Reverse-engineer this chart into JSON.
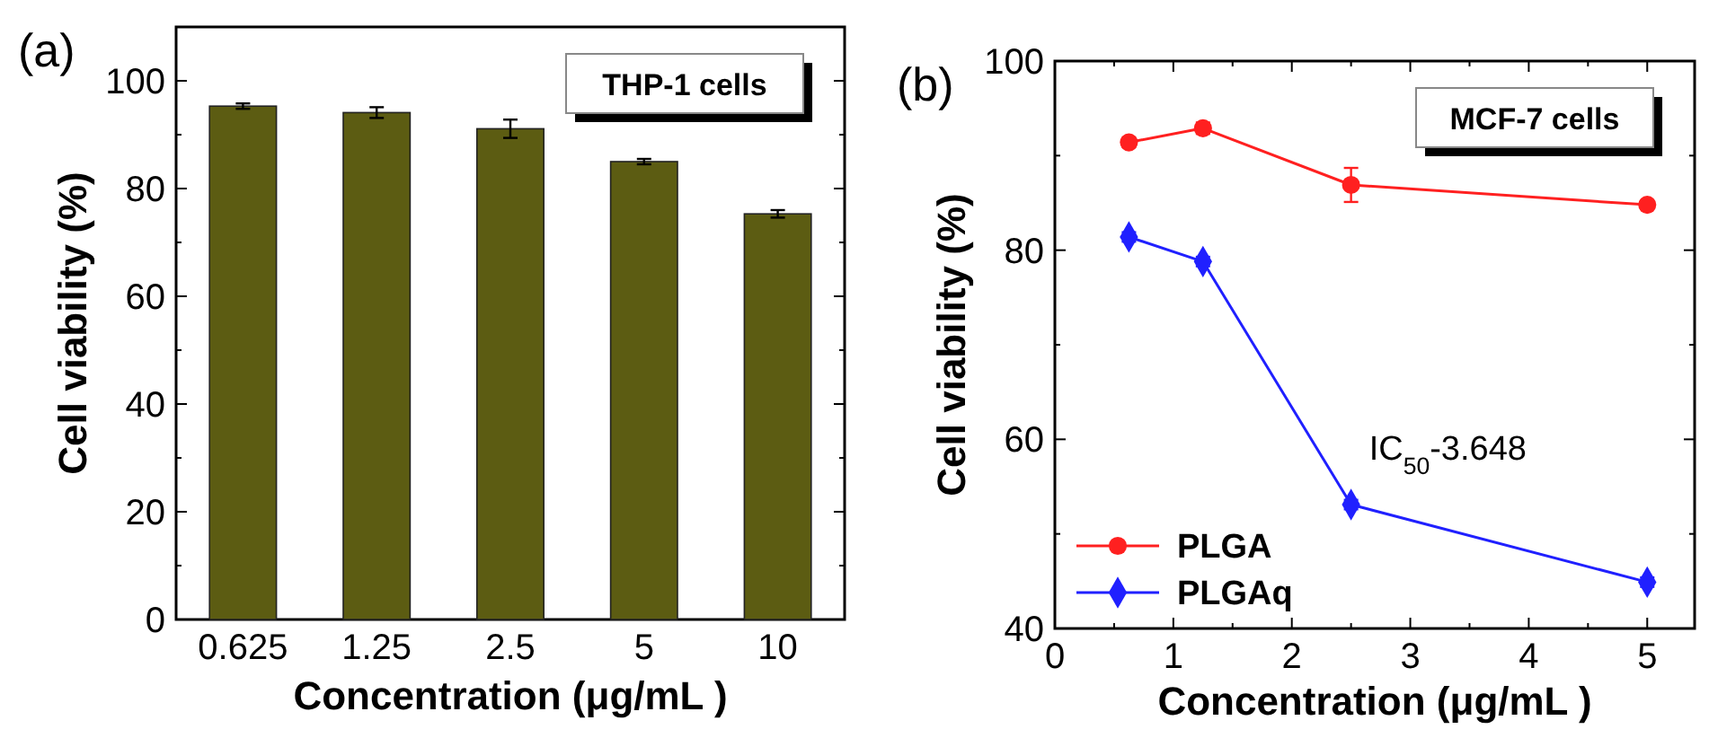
{
  "chart_data": [
    {
      "type": "bar",
      "categories": [
        "0.625",
        "1.25",
        "2.5",
        "5",
        "10"
      ],
      "values": [
        95.3,
        94.1,
        91.1,
        85,
        75.3
      ],
      "errors": [
        0.5,
        1,
        1.7,
        0.5,
        0.7
      ],
      "color": "#5c5c12",
      "xlabel": "Concentration (μg/mL )",
      "ylabel": "Cell viability (%)",
      "ylim": [
        0,
        110
      ],
      "yticks": [
        0,
        20,
        40,
        60,
        80,
        100,
        {
          "value": 10,
          "label": null
        },
        {
          "value": 30,
          "label": null
        },
        {
          "value": 50,
          "label": null
        },
        {
          "value": 70,
          "label": null
        },
        {
          "value": 90,
          "label": null
        }
      ],
      "annotations": [
        "(a)",
        "THP-1 cells"
      ],
      "grid": false,
      "legend": false
    },
    {
      "type": "line",
      "x": [
        0.625,
        1.25,
        2.5,
        5
      ],
      "series": [
        {
          "name": "PLGA",
          "color": "#ff2020",
          "marker": "circle",
          "values": [
            91.4,
            92.9,
            86.9,
            84.8
          ],
          "errors": [
            0.5,
            0.6,
            1.8,
            0.4
          ]
        },
        {
          "name": "PLGAq",
          "color": "#2020ff",
          "marker": "diamond",
          "values": [
            81.4,
            78.8,
            53.1,
            44.9
          ],
          "errors": [
            0.5,
            0.5,
            0.5,
            0.5
          ]
        }
      ],
      "xlabel": "Concentration (μg/mL )",
      "ylabel": "Cell viability (%)",
      "xlim": [
        0,
        5.4
      ],
      "xticks": [
        0,
        1,
        2,
        3,
        4,
        5,
        {
          "value": 0.5,
          "label": null
        },
        {
          "value": 1.5,
          "label": null
        },
        {
          "value": 2.5,
          "label": null
        },
        {
          "value": 3.5,
          "label": null
        },
        {
          "value": 4.5,
          "label": null
        }
      ],
      "ylim": [
        40,
        100
      ],
      "yticks": [
        40,
        60,
        80,
        100,
        {
          "value": 50,
          "label": null
        },
        {
          "value": 70,
          "label": null
        },
        {
          "value": 90,
          "label": null
        }
      ],
      "annotations": [
        "(b)",
        "MCF-7 cells",
        {
          "text": "IC$_{50}$-3.648",
          "x": 2.5,
          "y": 53.1
        }
      ],
      "grid": false,
      "legend": "bottom left",
      "line_style": "solid"
    }
  ]
}
